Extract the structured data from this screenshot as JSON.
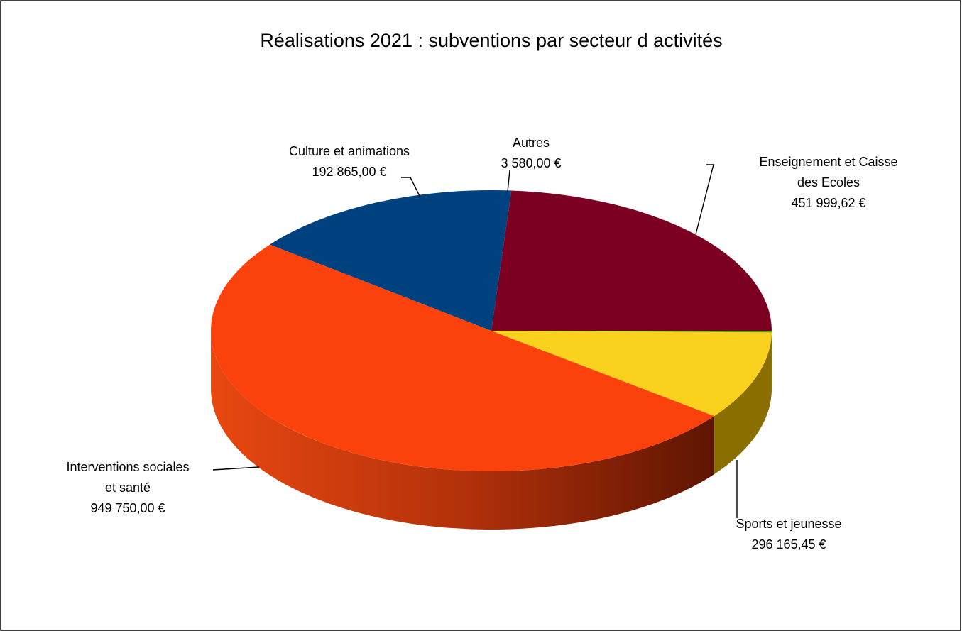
{
  "chart_data": {
    "type": "pie",
    "style": "3d",
    "title": "Réalisations 2021 : subventions par secteur d activités",
    "legend": "none",
    "slices": [
      {
        "label_lines": [
          "Enseignement et Caisse",
          "des Ecoles"
        ],
        "value": 451999.62,
        "value_text": "451 999,62 €",
        "color": "#7b0022"
      },
      {
        "label_lines": [
          "Sports et jeunesse"
        ],
        "value": 296165.45,
        "value_text": "296 165,45 €",
        "color": "#00427f"
      },
      {
        "label_lines": [
          "Interventions sociales",
          "et santé"
        ],
        "value": 949750.0,
        "value_text": "949 750,00 €",
        "color": "#fb420c"
      },
      {
        "label_lines": [
          "Culture et animations"
        ],
        "value": 192865.0,
        "value_text": "192 865,00 €",
        "color": "#fad11c"
      },
      {
        "label_lines": [
          "Autres"
        ],
        "value": 3580.0,
        "value_text": "3 580,00 €",
        "color": "#5c9c1e"
      }
    ]
  }
}
